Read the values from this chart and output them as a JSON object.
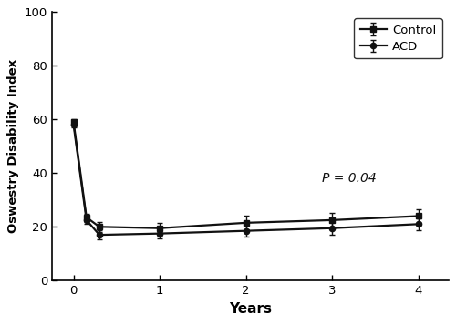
{
  "title": "",
  "xlabel": "Years",
  "ylabel": "Oswestry Disability Index",
  "p_text": "P = 0.04",
  "xlim": [
    -0.25,
    4.35
  ],
  "ylim": [
    0,
    100
  ],
  "yticks": [
    0,
    20,
    40,
    60,
    80,
    100
  ],
  "xticks": [
    0,
    1,
    2,
    3,
    4
  ],
  "control": {
    "label": "Control",
    "x": [
      0,
      0.15,
      0.3,
      1.0,
      2.0,
      3.0,
      4.0
    ],
    "y": [
      59.0,
      23.5,
      20.0,
      19.5,
      21.5,
      22.5,
      24.0
    ],
    "yerr": [
      1.0,
      1.5,
      1.8,
      2.0,
      2.5,
      2.8,
      2.5
    ],
    "color": "#111111",
    "marker": "s",
    "linewidth": 1.6,
    "markersize": 4.5
  },
  "acd": {
    "label": "ACD",
    "x": [
      0,
      0.15,
      0.3,
      1.0,
      2.0,
      3.0,
      4.0
    ],
    "y": [
      58.0,
      22.5,
      17.0,
      17.5,
      18.5,
      19.5,
      21.0
    ],
    "yerr": [
      1.0,
      1.5,
      1.8,
      1.8,
      2.2,
      2.5,
      2.2
    ],
    "color": "#111111",
    "marker": "o",
    "linewidth": 1.6,
    "markersize": 4.5
  },
  "background_color": "#ffffff",
  "figsize": [
    5.0,
    3.55
  ],
  "dpi": 100
}
